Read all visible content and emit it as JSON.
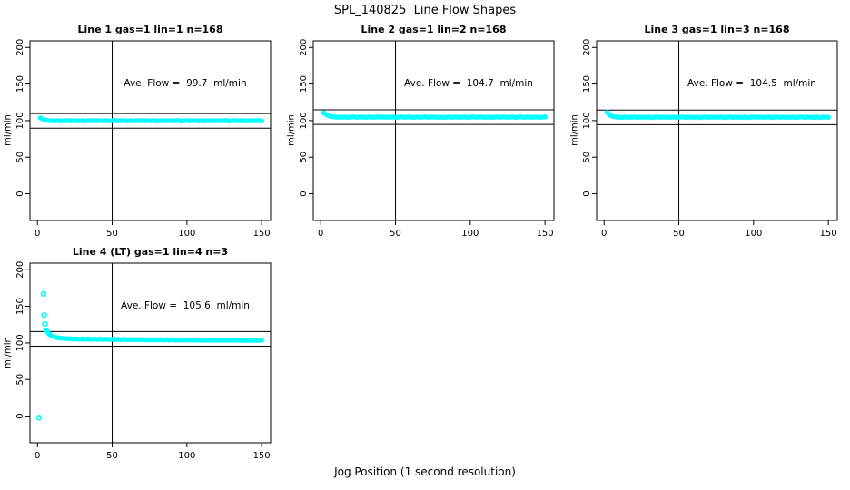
{
  "chart_data": {
    "type": "scatter",
    "title": "SPL_140825  Line Flow Shapes",
    "xlabel": "Jog Position (1 second resolution)",
    "ylabel": "ml/min",
    "point_color": "#00FFFF",
    "axis_color": "#000000",
    "background_color": "#FFFFFF",
    "xlim": [
      -5,
      156
    ],
    "ylim": [
      -36.5,
      209
    ],
    "x_ticks": [
      0,
      50,
      100,
      150
    ],
    "y_ticks": [
      0,
      50,
      100,
      150,
      200
    ],
    "vline_x": 50,
    "legend": "none",
    "grid": false,
    "panels": [
      {
        "title": "Line 1 gas=1 lin=1 n=168",
        "n": 168,
        "ave_flow": 99.7,
        "ave_flow_label": "Ave. Flow =  99.7  ml/min",
        "ref_lines": [
          109.7,
          89.7
        ],
        "points": [
          [
            2,
            103.6
          ],
          [
            4,
            101.5
          ],
          [
            6,
            100.4
          ],
          [
            8,
            100
          ],
          [
            10,
            99.9
          ],
          [
            12,
            99.5
          ],
          [
            14,
            100.1
          ],
          [
            16,
            99.4
          ],
          [
            18,
            99.8
          ],
          [
            20,
            100.2
          ],
          [
            22,
            99.6
          ],
          [
            24,
            100
          ],
          [
            26,
            99.9
          ],
          [
            28,
            99.5
          ],
          [
            30,
            100.1
          ],
          [
            32,
            99.4
          ],
          [
            34,
            99.8
          ],
          [
            36,
            100.2
          ],
          [
            38,
            99.6
          ],
          [
            40,
            100
          ],
          [
            42,
            99.9
          ],
          [
            44,
            99.5
          ],
          [
            46,
            100.1
          ],
          [
            48,
            99.4
          ],
          [
            50,
            99.8
          ],
          [
            52,
            100.2
          ],
          [
            54,
            99.6
          ],
          [
            56,
            100
          ],
          [
            58,
            99.9
          ],
          [
            60,
            99.5
          ],
          [
            62,
            100.1
          ],
          [
            64,
            99.4
          ],
          [
            66,
            99.8
          ],
          [
            68,
            100.2
          ],
          [
            70,
            99.6
          ],
          [
            72,
            100
          ],
          [
            74,
            99.9
          ],
          [
            76,
            99.5
          ],
          [
            78,
            100.1
          ],
          [
            80,
            99.4
          ],
          [
            82,
            99.8
          ],
          [
            84,
            100.2
          ],
          [
            86,
            99.6
          ],
          [
            88,
            100
          ],
          [
            90,
            99.9
          ],
          [
            92,
            99.5
          ],
          [
            94,
            100.1
          ],
          [
            96,
            99.4
          ],
          [
            98,
            99.8
          ],
          [
            100,
            100.2
          ],
          [
            102,
            99.6
          ],
          [
            104,
            100
          ],
          [
            106,
            99.9
          ],
          [
            108,
            99.5
          ],
          [
            110,
            100.1
          ],
          [
            112,
            99.4
          ],
          [
            114,
            99.8
          ],
          [
            116,
            100.2
          ],
          [
            118,
            99.6
          ],
          [
            120,
            100
          ],
          [
            122,
            99.9
          ],
          [
            124,
            99.5
          ],
          [
            126,
            100.1
          ],
          [
            128,
            99.4
          ],
          [
            130,
            99.8
          ],
          [
            132,
            100.2
          ],
          [
            134,
            99.6
          ],
          [
            136,
            100
          ],
          [
            138,
            99.9
          ],
          [
            140,
            99.5
          ],
          [
            142,
            100.1
          ],
          [
            144,
            99.4
          ],
          [
            146,
            99.8
          ],
          [
            148,
            100.2
          ],
          [
            150,
            99.6
          ]
        ]
      },
      {
        "title": "Line 2 gas=1 lin=2 n=168",
        "n": 168,
        "ave_flow": 104.7,
        "ave_flow_label": "Ave. Flow =  104.7  ml/min",
        "ref_lines": [
          114.7,
          94.7
        ],
        "points": [
          [
            2,
            110.6
          ],
          [
            4,
            107.8
          ],
          [
            6,
            106.1
          ],
          [
            8,
            105.3
          ],
          [
            10,
            104.9
          ],
          [
            12,
            104.8
          ],
          [
            14,
            104.4
          ],
          [
            16,
            105
          ],
          [
            18,
            104.3
          ],
          [
            20,
            104.7
          ],
          [
            22,
            105.1
          ],
          [
            24,
            104.5
          ],
          [
            26,
            104.9
          ],
          [
            28,
            104.8
          ],
          [
            30,
            104.4
          ],
          [
            32,
            105
          ],
          [
            34,
            104.3
          ],
          [
            36,
            104.7
          ],
          [
            38,
            105.1
          ],
          [
            40,
            104.5
          ],
          [
            42,
            104.9
          ],
          [
            44,
            104.8
          ],
          [
            46,
            104.4
          ],
          [
            48,
            105
          ],
          [
            50,
            104.3
          ],
          [
            52,
            104.7
          ],
          [
            54,
            105.1
          ],
          [
            56,
            104.5
          ],
          [
            58,
            104.9
          ],
          [
            60,
            104.8
          ],
          [
            62,
            104.4
          ],
          [
            64,
            105
          ],
          [
            66,
            104.3
          ],
          [
            68,
            104.7
          ],
          [
            70,
            105.1
          ],
          [
            72,
            104.5
          ],
          [
            74,
            104.9
          ],
          [
            76,
            104.8
          ],
          [
            78,
            104.4
          ],
          [
            80,
            105
          ],
          [
            82,
            104.3
          ],
          [
            84,
            104.7
          ],
          [
            86,
            105.1
          ],
          [
            88,
            104.5
          ],
          [
            90,
            104.9
          ],
          [
            92,
            104.8
          ],
          [
            94,
            104.4
          ],
          [
            96,
            105
          ],
          [
            98,
            104.3
          ],
          [
            100,
            104.7
          ],
          [
            102,
            105.1
          ],
          [
            104,
            104.5
          ],
          [
            106,
            104.9
          ],
          [
            108,
            104.8
          ],
          [
            110,
            104.4
          ],
          [
            112,
            105
          ],
          [
            114,
            104.3
          ],
          [
            116,
            104.7
          ],
          [
            118,
            105.1
          ],
          [
            120,
            104.5
          ],
          [
            122,
            104.9
          ],
          [
            124,
            104.8
          ],
          [
            126,
            104.4
          ],
          [
            128,
            105
          ],
          [
            130,
            104.3
          ],
          [
            132,
            104.7
          ],
          [
            134,
            105.1
          ],
          [
            136,
            104.5
          ],
          [
            138,
            104.9
          ],
          [
            140,
            104.8
          ],
          [
            142,
            104.4
          ],
          [
            144,
            105
          ],
          [
            146,
            104.3
          ],
          [
            148,
            104.7
          ],
          [
            150,
            105.1
          ]
        ]
      },
      {
        "title": "Line 3 gas=1 lin=3 n=168",
        "n": 168,
        "ave_flow": 104.5,
        "ave_flow_label": "Ave. Flow =  104.5  ml/min",
        "ref_lines": [
          114.5,
          94.5
        ],
        "points": [
          [
            2,
            111.2
          ],
          [
            4,
            107.3
          ],
          [
            6,
            105.6
          ],
          [
            8,
            104.9
          ],
          [
            10,
            104.7
          ],
          [
            12,
            104.3
          ],
          [
            14,
            104.9
          ],
          [
            16,
            104.2
          ],
          [
            18,
            104.6
          ],
          [
            20,
            105
          ],
          [
            22,
            104.4
          ],
          [
            24,
            104.8
          ],
          [
            26,
            104.7
          ],
          [
            28,
            104.3
          ],
          [
            30,
            104.9
          ],
          [
            32,
            104.2
          ],
          [
            34,
            104.6
          ],
          [
            36,
            105
          ],
          [
            38,
            104.4
          ],
          [
            40,
            104.8
          ],
          [
            42,
            104.7
          ],
          [
            44,
            104.3
          ],
          [
            46,
            104.9
          ],
          [
            48,
            104.2
          ],
          [
            50,
            104.6
          ],
          [
            52,
            105
          ],
          [
            54,
            104.4
          ],
          [
            56,
            104.8
          ],
          [
            58,
            104.7
          ],
          [
            60,
            104.3
          ],
          [
            62,
            104.9
          ],
          [
            64,
            104.2
          ],
          [
            66,
            104.6
          ],
          [
            68,
            105
          ],
          [
            70,
            104.4
          ],
          [
            72,
            104.8
          ],
          [
            74,
            104.7
          ],
          [
            76,
            104.3
          ],
          [
            78,
            104.9
          ],
          [
            80,
            104.2
          ],
          [
            82,
            104.6
          ],
          [
            84,
            105
          ],
          [
            86,
            104.4
          ],
          [
            88,
            104.8
          ],
          [
            90,
            104.7
          ],
          [
            92,
            104.3
          ],
          [
            94,
            104.9
          ],
          [
            96,
            104.2
          ],
          [
            98,
            104.6
          ],
          [
            100,
            105
          ],
          [
            102,
            104.4
          ],
          [
            104,
            104.8
          ],
          [
            106,
            104.7
          ],
          [
            108,
            104.3
          ],
          [
            110,
            104.9
          ],
          [
            112,
            104.2
          ],
          [
            114,
            104.6
          ],
          [
            116,
            105
          ],
          [
            118,
            104.4
          ],
          [
            120,
            104.8
          ],
          [
            122,
            104.7
          ],
          [
            124,
            104.3
          ],
          [
            126,
            104.9
          ],
          [
            128,
            104.2
          ],
          [
            130,
            104.6
          ],
          [
            132,
            105
          ],
          [
            134,
            104.4
          ],
          [
            136,
            104.8
          ],
          [
            138,
            104.7
          ],
          [
            140,
            104.3
          ],
          [
            142,
            104.9
          ],
          [
            144,
            104.2
          ],
          [
            146,
            104.6
          ],
          [
            148,
            105
          ],
          [
            150,
            104.4
          ]
        ]
      },
      {
        "title": "Line 4 (LT) gas=1 lin=4 n=3",
        "n": 3,
        "ave_flow": 105.6,
        "ave_flow_label": "Ave. Flow =  105.6  ml/min",
        "ref_lines": [
          115.6,
          95.6
        ],
        "isolated": [
          [
            1,
            -2
          ],
          [
            4,
            167
          ],
          [
            4.5,
            138
          ],
          [
            5,
            126
          ]
        ],
        "points": [
          [
            6,
            117
          ],
          [
            7,
            114
          ],
          [
            8,
            111.8
          ],
          [
            9,
            110.3
          ],
          [
            10,
            109.2
          ],
          [
            12,
            107.8
          ],
          [
            14,
            107
          ],
          [
            16,
            106.5
          ],
          [
            18,
            106.1
          ],
          [
            20,
            105.8
          ],
          [
            22,
            105.7
          ],
          [
            24,
            105.2
          ],
          [
            26,
            105.6
          ],
          [
            28,
            105.1
          ],
          [
            30,
            105.5
          ],
          [
            32,
            105
          ],
          [
            34,
            105.4
          ],
          [
            36,
            104.9
          ],
          [
            38,
            105.3
          ],
          [
            40,
            104.8
          ],
          [
            42,
            105.2
          ],
          [
            44,
            104.7
          ],
          [
            46,
            105.1
          ],
          [
            48,
            104.7
          ],
          [
            50,
            105
          ],
          [
            52,
            104.6
          ],
          [
            54,
            104.9
          ],
          [
            56,
            104.5
          ],
          [
            58,
            104.8
          ],
          [
            60,
            104.4
          ],
          [
            62,
            104.7
          ],
          [
            64,
            104.3
          ],
          [
            66,
            104.6
          ],
          [
            68,
            104.3
          ],
          [
            70,
            104.5
          ],
          [
            72,
            104.2
          ],
          [
            74,
            104.5
          ],
          [
            76,
            104.1
          ],
          [
            78,
            104.4
          ],
          [
            80,
            104.1
          ],
          [
            82,
            104.4
          ],
          [
            84,
            104
          ],
          [
            86,
            104.3
          ],
          [
            88,
            104
          ],
          [
            90,
            104.3
          ],
          [
            92,
            103.9
          ],
          [
            94,
            104.2
          ],
          [
            96,
            103.9
          ],
          [
            98,
            104.2
          ],
          [
            100,
            103.8
          ],
          [
            102,
            104.1
          ],
          [
            104,
            103.8
          ],
          [
            106,
            104.1
          ],
          [
            108,
            103.8
          ],
          [
            110,
            104
          ],
          [
            112,
            103.7
          ],
          [
            114,
            104
          ],
          [
            116,
            103.7
          ],
          [
            118,
            104
          ],
          [
            120,
            103.7
          ],
          [
            122,
            103.9
          ],
          [
            124,
            103.6
          ],
          [
            126,
            103.9
          ],
          [
            128,
            103.6
          ],
          [
            130,
            103.9
          ],
          [
            132,
            103.6
          ],
          [
            134,
            103.8
          ],
          [
            136,
            103.5
          ],
          [
            138,
            103.8
          ],
          [
            140,
            103.5
          ],
          [
            142,
            103.8
          ],
          [
            144,
            103.5
          ],
          [
            146,
            103.7
          ],
          [
            148,
            103.5
          ],
          [
            150,
            103.7
          ]
        ]
      }
    ]
  }
}
